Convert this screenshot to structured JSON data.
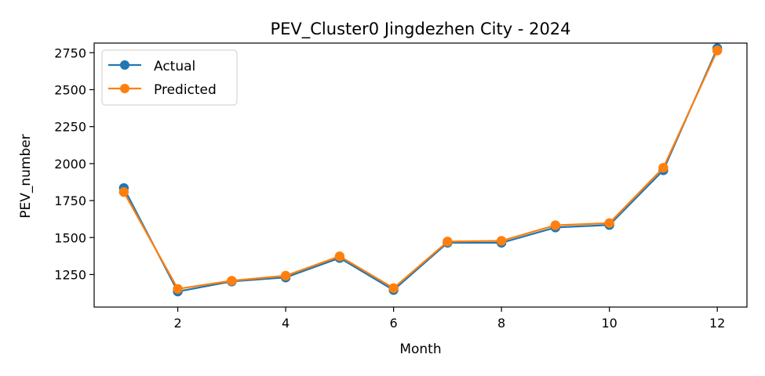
{
  "chart_data": {
    "type": "line",
    "title": "PEV_Cluster0 Jingdezhen City - 2024",
    "xlabel": "Month",
    "ylabel": "PEV_number",
    "x": [
      1,
      2,
      3,
      4,
      5,
      6,
      7,
      8,
      9,
      10,
      11,
      12
    ],
    "xticks": [
      2,
      4,
      6,
      8,
      10,
      12
    ],
    "yticks": [
      1250,
      1500,
      1750,
      2000,
      2250,
      2500,
      2750
    ],
    "xlim": [
      0.45,
      12.55
    ],
    "ylim": [
      1030,
      2815
    ],
    "grid": false,
    "legend_position": "upper-left",
    "series": [
      {
        "name": "Actual",
        "color": "#1f77b4",
        "values": [
          1835,
          1135,
          1203,
          1230,
          1362,
          1145,
          1465,
          1465,
          1568,
          1585,
          1955,
          2780
        ]
      },
      {
        "name": "Predicted",
        "color": "#ff7f0e",
        "values": [
          1808,
          1153,
          1208,
          1242,
          1373,
          1158,
          1473,
          1478,
          1583,
          1598,
          1972,
          2765
        ]
      }
    ]
  }
}
